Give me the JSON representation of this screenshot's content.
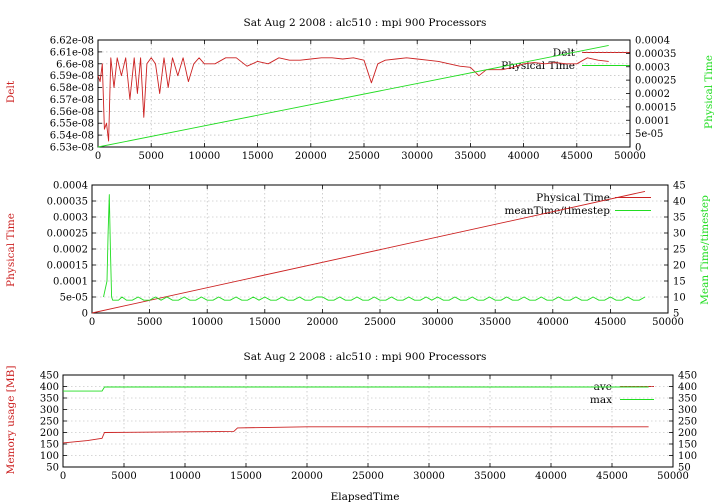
{
  "colors": {
    "red": "#cc2222",
    "green": "#22dd22",
    "axis": "#000000",
    "grid": "#b0b0b0"
  },
  "chart_data": [
    {
      "type": "line",
      "title": "Sat Aug 2 2008 : alc510 : mpi 900 Processors",
      "xlabel": "",
      "ylabel": "Delt",
      "y2label": "Physical Time",
      "xlim": [
        0,
        50000
      ],
      "ylim": [
        6.53e-08,
        6.62e-08
      ],
      "y2lim": [
        0,
        0.0004
      ],
      "grid": true,
      "legend_placement": "top-right",
      "x_ticks": [
        "0",
        "5000",
        "10000",
        "15000",
        "20000",
        "25000",
        "30000",
        "35000",
        "40000",
        "45000",
        "50000"
      ],
      "y_ticks": [
        "6.53e-08",
        "6.54e-08",
        "6.55e-08",
        "6.56e-08",
        "6.57e-08",
        "6.58e-08",
        "6.59e-08",
        "6.6e-08",
        "6.61e-08",
        "6.62e-08"
      ],
      "y2_ticks": [
        "0",
        "5e-05",
        "0.0001",
        "0.00015",
        "0.0002",
        "0.00025",
        "0.0003",
        "0.00035",
        "0.0004"
      ],
      "series": [
        {
          "name": "Delt",
          "axis": "y",
          "color": "#cc2222",
          "x": [
            0,
            200,
            400,
            600,
            800,
            1000,
            1200,
            1500,
            1800,
            2200,
            2600,
            3000,
            3400,
            3700,
            4000,
            4300,
            4600,
            5000,
            5400,
            5800,
            6200,
            6600,
            7000,
            7500,
            8000,
            8500,
            9000,
            9500,
            10000,
            11000,
            12000,
            13000,
            14000,
            15000,
            16000,
            17000,
            18000,
            19000,
            20000,
            21000,
            22000,
            23000,
            24000,
            25000,
            25700,
            26300,
            27000,
            28000,
            29000,
            30000,
            31000,
            32000,
            33000,
            34000,
            35000,
            35800,
            36500,
            37000,
            38000,
            39000,
            40000,
            41000,
            42000,
            43000,
            44000,
            45000,
            46000,
            47000,
            48000
          ],
          "y": [
            6.59e-08,
            6.585e-08,
            6.6e-08,
            6.545e-08,
            6.55e-08,
            6.535e-08,
            6.605e-08,
            6.58e-08,
            6.605e-08,
            6.59e-08,
            6.605e-08,
            6.57e-08,
            6.605e-08,
            6.575e-08,
            6.605e-08,
            6.555e-08,
            6.6e-08,
            6.605e-08,
            6.6e-08,
            6.575e-08,
            6.605e-08,
            6.58e-08,
            6.605e-08,
            6.59e-08,
            6.605e-08,
            6.585e-08,
            6.6e-08,
            6.605e-08,
            6.6e-08,
            6.6e-08,
            6.605e-08,
            6.605e-08,
            6.598e-08,
            6.602e-08,
            6.6e-08,
            6.605e-08,
            6.603e-08,
            6.603e-08,
            6.604e-08,
            6.605e-08,
            6.605e-08,
            6.604e-08,
            6.605e-08,
            6.603e-08,
            6.584e-08,
            6.6e-08,
            6.603e-08,
            6.604e-08,
            6.605e-08,
            6.604e-08,
            6.603e-08,
            6.602e-08,
            6.6e-08,
            6.598e-08,
            6.597e-08,
            6.59e-08,
            6.595e-08,
            6.595e-08,
            6.595e-08,
            6.597e-08,
            6.6e-08,
            6.601e-08,
            6.6e-08,
            6.601e-08,
            6.6e-08,
            6.6e-08,
            6.605e-08,
            6.603e-08,
            6.602e-08
          ]
        },
        {
          "name": "Physical Time",
          "axis": "y2",
          "color": "#22dd22",
          "x": [
            0,
            48000
          ],
          "y": [
            0,
            0.00038
          ]
        }
      ]
    },
    {
      "type": "line",
      "title": "",
      "xlabel": "",
      "ylabel": "Physical Time",
      "y2label": "Mean Time/timestep",
      "xlim": [
        0,
        50000
      ],
      "ylim": [
        0,
        0.0004
      ],
      "y2lim": [
        5,
        45
      ],
      "grid": true,
      "legend_placement": "top-right",
      "x_ticks": [
        "0",
        "5000",
        "10000",
        "15000",
        "20000",
        "25000",
        "30000",
        "35000",
        "40000",
        "45000",
        "50000"
      ],
      "y_ticks": [
        "0",
        "5e-05",
        "0.0001",
        "0.00015",
        "0.0002",
        "0.00025",
        "0.0003",
        "0.00035",
        "0.0004"
      ],
      "y2_ticks": [
        "5",
        "10",
        "15",
        "20",
        "25",
        "30",
        "35",
        "40",
        "45"
      ],
      "series": [
        {
          "name": "Physical Time",
          "axis": "y",
          "color": "#cc2222",
          "x": [
            0,
            48000
          ],
          "y": [
            0,
            0.00038
          ]
        },
        {
          "name": "meanTime/timestep",
          "axis": "y2",
          "color": "#22dd22",
          "x": [
            1000,
            1300,
            1400,
            1500,
            1600,
            1700,
            1800,
            2000,
            2300,
            2600,
            3000,
            3500,
            4000,
            4500,
            5000,
            5500,
            6000,
            6500,
            7000,
            7500,
            8000,
            8500,
            9000,
            9500,
            10000,
            10500,
            11000,
            11500,
            12000,
            12500,
            13000,
            13500,
            14000,
            14500,
            15000,
            15500,
            16000,
            16500,
            17000,
            17500,
            18000,
            18500,
            19000,
            19500,
            20000,
            20500,
            21000,
            21500,
            22000,
            22500,
            23000,
            23500,
            24000,
            24500,
            25000,
            25500,
            26000,
            26500,
            27000,
            27500,
            28000,
            28500,
            29000,
            29500,
            30000,
            30500,
            31000,
            31500,
            32000,
            32500,
            33000,
            33500,
            34000,
            34500,
            35000,
            35500,
            36000,
            36500,
            37000,
            37500,
            38000,
            38500,
            39000,
            39500,
            40000,
            40500,
            41000,
            41500,
            42000,
            42500,
            43000,
            43500,
            44000,
            44500,
            45000,
            45500,
            46000,
            46500,
            47000,
            47500,
            48000
          ],
          "y": [
            10,
            15,
            30,
            42,
            25,
            10,
            9,
            9,
            9,
            10,
            9,
            9,
            10,
            9,
            9,
            10,
            9,
            10,
            9,
            9,
            10,
            9,
            9,
            10,
            9,
            9,
            10,
            9,
            9,
            10,
            9,
            9,
            10,
            9,
            10,
            9,
            9,
            10,
            9,
            9,
            10,
            9,
            9,
            10,
            10,
            9,
            9,
            10,
            9,
            9,
            10,
            9,
            9,
            10,
            9,
            9,
            10,
            9,
            9,
            10,
            9,
            9,
            10,
            9,
            10,
            9,
            9,
            10,
            9,
            9,
            10,
            9,
            9,
            10,
            9,
            9,
            10,
            9,
            9,
            10,
            9,
            9,
            10,
            9,
            9,
            10,
            9,
            9,
            10,
            9,
            9,
            10,
            9,
            9,
            10,
            9,
            9,
            10,
            9,
            9,
            10
          ]
        }
      ]
    },
    {
      "type": "line",
      "title": "Sat Aug 2 2008 : alc510 : mpi 900 Processors",
      "xlabel": "ElapsedTime",
      "ylabel": "Memory usage [MB]",
      "y2label": "",
      "xlim": [
        0,
        50000
      ],
      "ylim": [
        50,
        450
      ],
      "y2lim": [
        50,
        450
      ],
      "grid": true,
      "legend_placement": "top-right",
      "x_ticks": [
        "0",
        "5000",
        "10000",
        "15000",
        "20000",
        "25000",
        "30000",
        "35000",
        "40000",
        "45000",
        "50000"
      ],
      "y_ticks": [
        "50",
        "100",
        "150",
        "200",
        "250",
        "300",
        "350",
        "400",
        "450"
      ],
      "y2_ticks": [
        "50",
        "100",
        "150",
        "200",
        "250",
        "300",
        "350",
        "400",
        "450"
      ],
      "series": [
        {
          "name": "ave",
          "axis": "y",
          "color": "#cc2222",
          "x": [
            0,
            2000,
            3200,
            3400,
            14000,
            14300,
            20000,
            48000
          ],
          "y": [
            155,
            165,
            175,
            200,
            205,
            220,
            225,
            225
          ]
        },
        {
          "name": "max",
          "axis": "y",
          "color": "#22dd22",
          "x": [
            0,
            3200,
            3400,
            48000
          ],
          "y": [
            380,
            380,
            398,
            398
          ]
        }
      ]
    }
  ]
}
